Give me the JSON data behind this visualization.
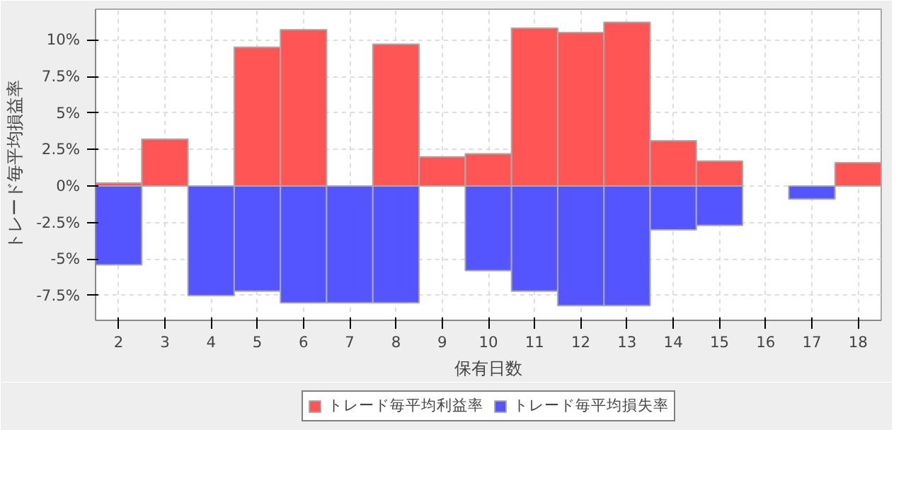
{
  "chart_data": {
    "type": "bar",
    "xlabel": "保有日数",
    "ylabel": "トレード毎平均損益率",
    "x": [
      2,
      3,
      4,
      5,
      6,
      7,
      8,
      9,
      10,
      11,
      12,
      13,
      14,
      15,
      16,
      17,
      18
    ],
    "series": [
      {
        "name": "トレード毎平均利益率",
        "color": "#ff5555",
        "values": [
          0.2,
          3.2,
          null,
          9.5,
          10.7,
          null,
          9.7,
          2.0,
          2.2,
          10.8,
          10.5,
          11.2,
          3.1,
          1.7,
          null,
          null,
          1.6
        ]
      },
      {
        "name": "トレード毎平均損失率",
        "color": "#5555ff",
        "values": [
          -5.4,
          null,
          -7.5,
          -7.2,
          -8.0,
          -8.0,
          -8.0,
          null,
          -5.8,
          -7.2,
          -8.2,
          -8.2,
          -3.0,
          -2.7,
          null,
          -0.9,
          null
        ]
      }
    ],
    "xlim": [
      1.5,
      18.5
    ],
    "xticks": [
      2,
      3,
      4,
      5,
      6,
      7,
      8,
      9,
      10,
      11,
      12,
      13,
      14,
      15,
      16,
      17,
      18
    ],
    "ylim": [
      -9.2,
      12.1
    ],
    "yticks": [
      {
        "value": -7.5,
        "label": "-7.5%"
      },
      {
        "value": -5,
        "label": "-5%"
      },
      {
        "value": -2.5,
        "label": "-2.5%"
      },
      {
        "value": 0,
        "label": "0%"
      },
      {
        "value": 2.5,
        "label": "2.5%"
      },
      {
        "value": 5,
        "label": "5%"
      },
      {
        "value": 7.5,
        "label": "7.5%"
      },
      {
        "value": 10,
        "label": "10%"
      }
    ],
    "stacked": true,
    "grid": true,
    "legend": "bottom"
  }
}
